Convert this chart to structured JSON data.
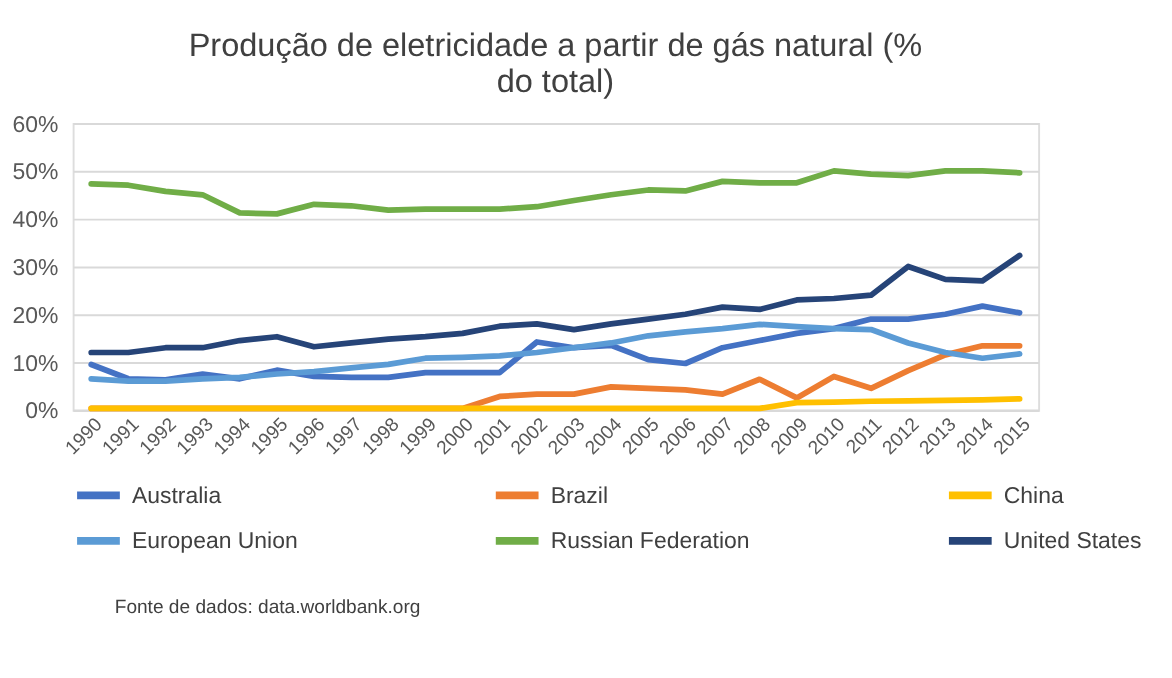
{
  "chart_data": {
    "type": "line",
    "title": "Produção de eletricidade a partir de gás natural  (% do total)",
    "categories": [
      "1990",
      "1991",
      "1992",
      "1993",
      "1994",
      "1995",
      "1996",
      "1997",
      "1998",
      "1999",
      "2000",
      "2001",
      "2002",
      "2003",
      "2004",
      "2005",
      "2006",
      "2007",
      "2008",
      "2009",
      "2010",
      "2011",
      "2012",
      "2013",
      "2014",
      "2015"
    ],
    "series": [
      {
        "name": "Australia",
        "color": "#4472c4",
        "values": [
          9.5,
          6.5,
          6.3,
          7.5,
          6.5,
          8.3,
          7,
          6.8,
          6.8,
          7.8,
          7.8,
          7.8,
          14.2,
          13,
          13.5,
          10.5,
          9.7,
          13,
          14.5,
          16,
          17,
          19,
          19,
          20,
          21.7,
          20.3
        ]
      },
      {
        "name": "Brazil",
        "color": "#ed7d31",
        "values": [
          0.3,
          0.3,
          0.3,
          0.3,
          0.3,
          0.3,
          0.3,
          0.3,
          0.3,
          0.3,
          0.3,
          2.8,
          3.3,
          3.3,
          4.8,
          4.5,
          4.2,
          3.3,
          6.4,
          2.5,
          7,
          4.5,
          8.2,
          11.5,
          13.4,
          13.4
        ]
      },
      {
        "name": "China",
        "color": "#ffc000",
        "values": [
          0.3,
          0.3,
          0.3,
          0.3,
          0.3,
          0.3,
          0.3,
          0.3,
          0.3,
          0.3,
          0.3,
          0.3,
          0.3,
          0.3,
          0.3,
          0.3,
          0.3,
          0.3,
          0.3,
          1.5,
          1.6,
          1.8,
          1.9,
          2,
          2.1,
          2.3
        ]
      },
      {
        "name": "European Union",
        "color": "#5b9bd5",
        "values": [
          6.5,
          6,
          6,
          6.5,
          6.8,
          7.5,
          8,
          8.8,
          9.5,
          10.8,
          11,
          11.3,
          12,
          13,
          14,
          15.5,
          16.3,
          17,
          17.9,
          17.4,
          17,
          16.8,
          14,
          12,
          10.8,
          11.7
        ]
      },
      {
        "name": "Russian Federation",
        "color": "#70ad47",
        "values": [
          47.3,
          47,
          45.7,
          45,
          41.2,
          41,
          43,
          42.7,
          41.8,
          42,
          42,
          42,
          42.5,
          43.8,
          45,
          46,
          45.8,
          47.8,
          47.5,
          47.5,
          50,
          49.3,
          49,
          50,
          50,
          49.6
        ]
      },
      {
        "name": "United States",
        "color": "#264478",
        "values": [
          12,
          12,
          13,
          13,
          14.5,
          15.3,
          13.2,
          14,
          14.8,
          15.3,
          16,
          17.5,
          18,
          16.8,
          18,
          19,
          20,
          21.5,
          21,
          23,
          23.3,
          24,
          30,
          27.3,
          27,
          32.3
        ]
      }
    ],
    "ylim": [
      0,
      60
    ],
    "yticks": [
      {
        "value": 0,
        "label": "0%"
      },
      {
        "value": 10,
        "label": "10%"
      },
      {
        "value": 20,
        "label": "20%"
      },
      {
        "value": 30,
        "label": "30%"
      },
      {
        "value": 40,
        "label": "40%"
      },
      {
        "value": 50,
        "label": "50%"
      },
      {
        "value": 60,
        "label": "60%"
      }
    ],
    "grid": "y",
    "legend": "bottom",
    "marker": "none",
    "line_style": "solid",
    "annotations": [
      "Fonte de dados: data.worldbank.org"
    ]
  }
}
